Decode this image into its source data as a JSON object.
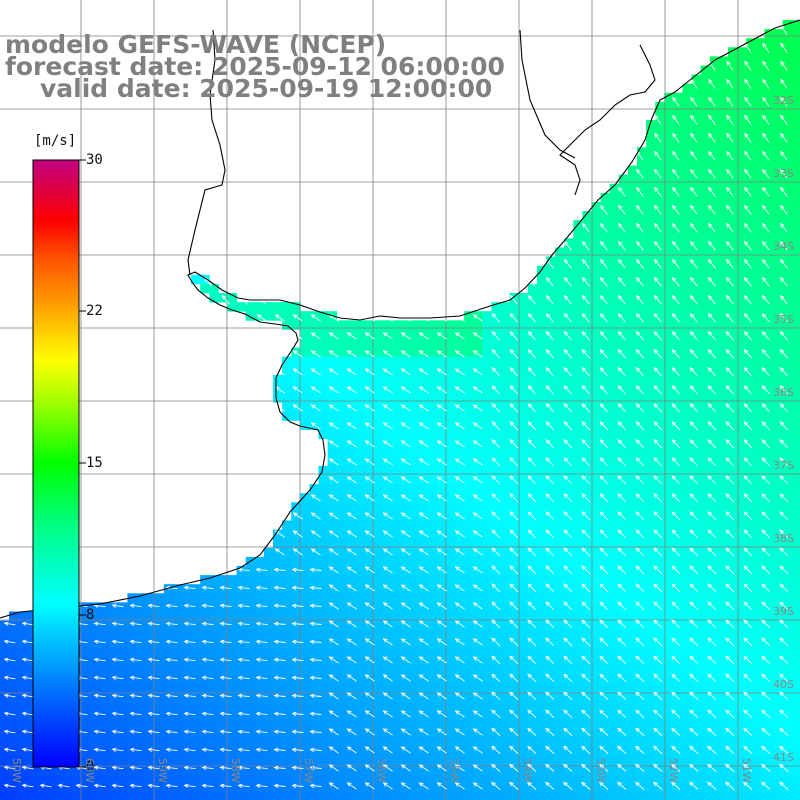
{
  "title": {
    "model": "modelo GEFS-WAVE (NCEP)",
    "forecast": "forecast date: 2025-09-12 06:00:00",
    "valid": "valid date: 2025-09-19 12:00:00"
  },
  "colorbar": {
    "unit": "[m/s]",
    "ticks": [
      "30",
      "22",
      "15",
      "8",
      "0"
    ],
    "tick_values": [
      30,
      22,
      15,
      8,
      0
    ],
    "colors": [
      "#0000ff",
      "#00a0ff",
      "#00ffff",
      "#00ff80",
      "#00ff00",
      "#a0ff00",
      "#ffff00",
      "#ffa000",
      "#ff5000",
      "#ff0000",
      "#e00060",
      "#c00080"
    ]
  },
  "lat_labels": [
    "32S",
    "33S",
    "34S",
    "35S",
    "36S",
    "37S",
    "38S",
    "39S",
    "40S",
    "41S"
  ],
  "lon_labels": [
    "60W",
    "59W",
    "58W",
    "57W",
    "56W",
    "55W",
    "54W",
    "53W",
    "52W",
    "51W",
    "50W"
  ],
  "colors": {
    "land": "#ffffff",
    "coastline": "#000000",
    "grid": "#808080",
    "title": "#808080",
    "arrow": "#ffffff"
  },
  "wind_direction": "SE-to-NW flow in open ocean, easterly near coast"
}
